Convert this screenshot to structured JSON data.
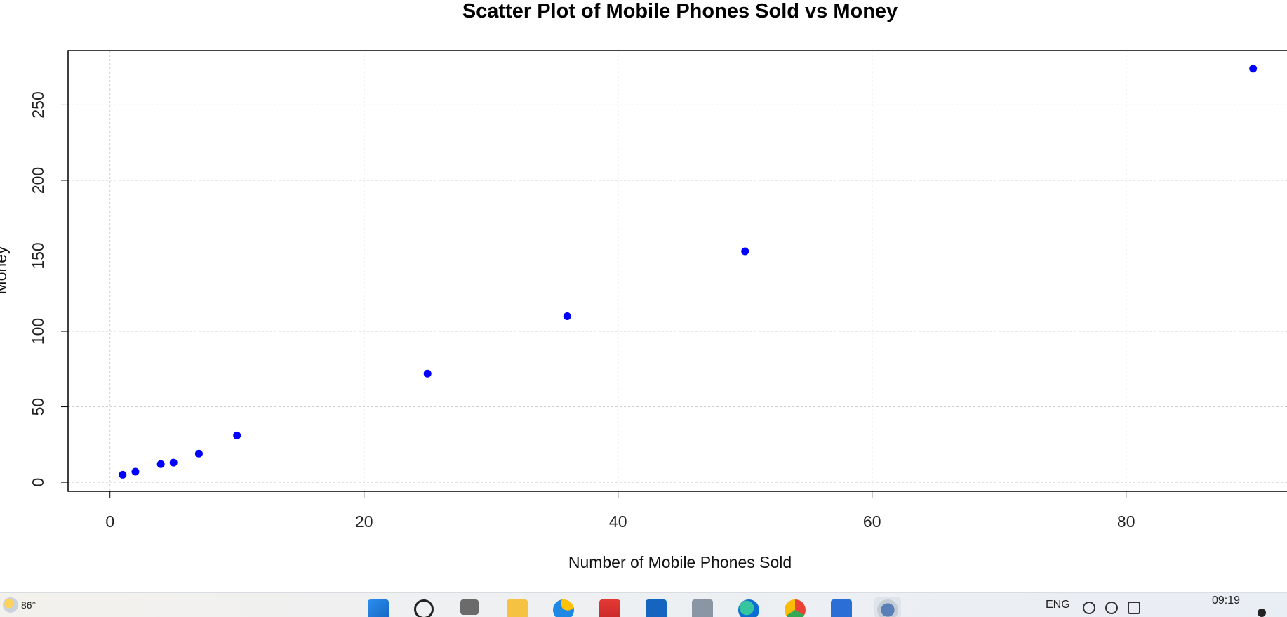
{
  "chart_data": {
    "type": "scatter",
    "title": "Scatter Plot of Mobile Phones Sold vs Money",
    "xlabel": "Number of Mobile Phones Sold",
    "ylabel": "Money",
    "xlim": [
      -3.3,
      93
    ],
    "ylim": [
      -6,
      286
    ],
    "xticks": [
      0,
      20,
      40,
      60,
      80
    ],
    "yticks": [
      0,
      50,
      100,
      150,
      200,
      250
    ],
    "grid": true,
    "point_color": "#0000ff",
    "series": [
      {
        "x": [
          1,
          2,
          4,
          5,
          7,
          10,
          25,
          36,
          50,
          90
        ],
        "y": [
          5,
          7,
          12,
          13,
          19,
          31,
          72,
          110,
          153,
          274
        ]
      }
    ]
  },
  "taskbar": {
    "weather_temp": "86°",
    "language": "ENG",
    "time": "09:19",
    "apps": [
      "start",
      "search",
      "task-view",
      "file-explorer",
      "edge-dev",
      "gmail",
      "store",
      "app",
      "edge",
      "chrome",
      "word",
      "r-studio"
    ]
  }
}
